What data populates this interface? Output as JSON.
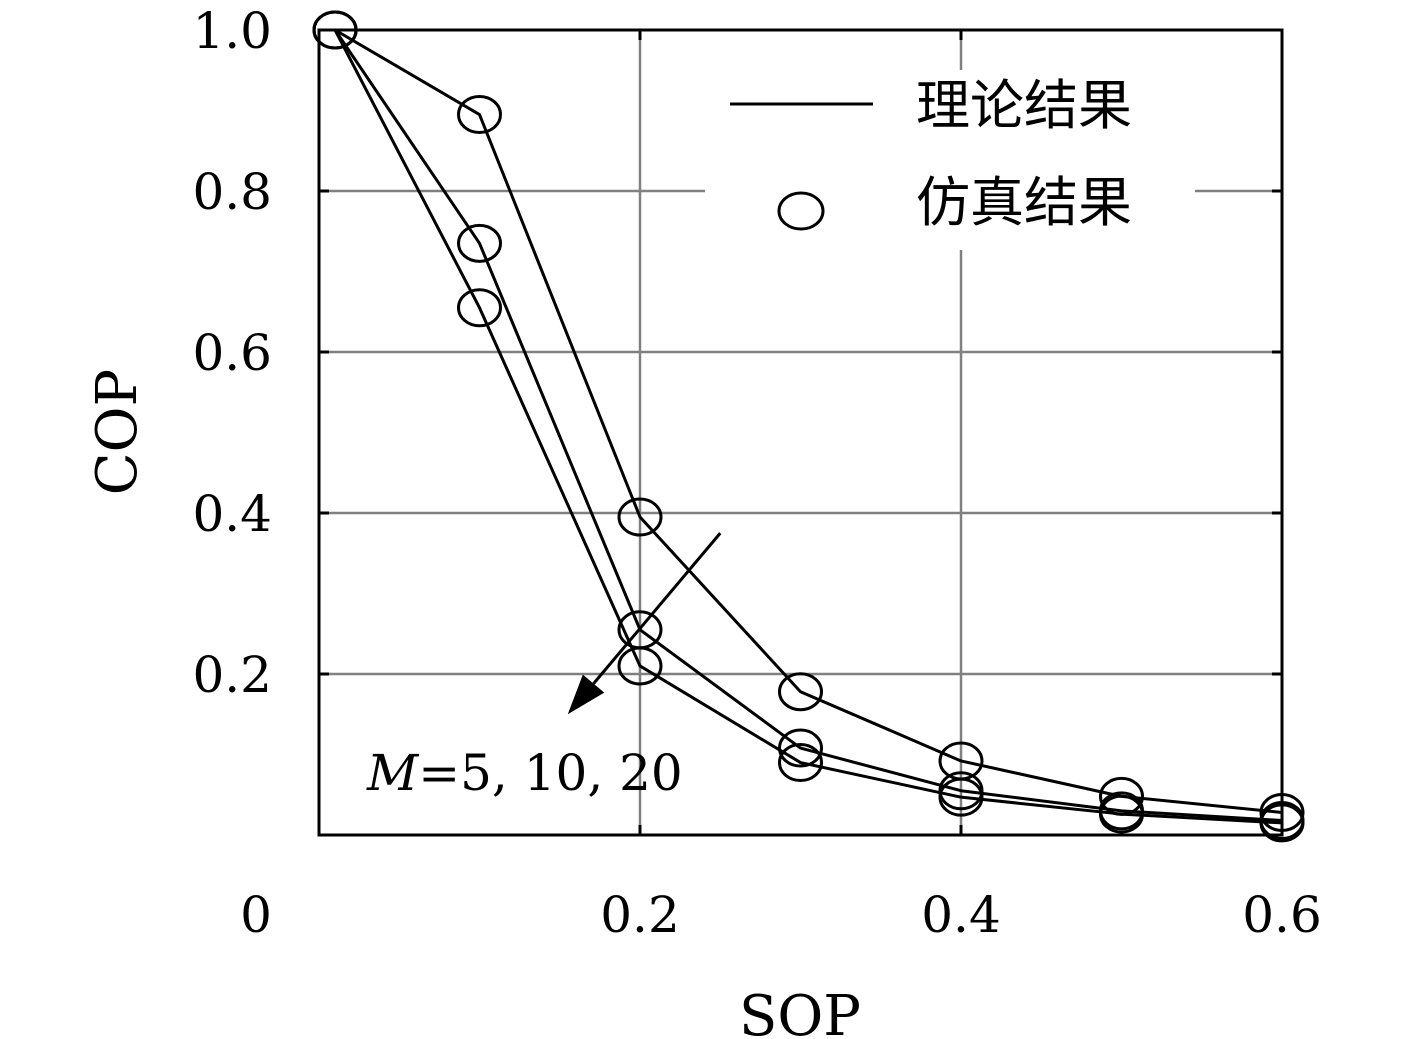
{
  "chart_data": {
    "type": "line",
    "xlabel": "SOP",
    "ylabel": "COP",
    "xlim": [
      0,
      0.6
    ],
    "ylim": [
      0,
      1.0
    ],
    "x_ticks": [
      0,
      0.2,
      0.4,
      0.6
    ],
    "x_tick_labels": [
      "0",
      "0.2",
      "0.4",
      "0.6"
    ],
    "y_ticks": [
      0.2,
      0.4,
      0.6,
      0.8,
      1.0
    ],
    "y_tick_labels": [
      "0.2",
      "0.4",
      "0.6",
      "0.8",
      "1.0"
    ],
    "grid": true,
    "legend": {
      "placement": "top-right",
      "entries": [
        {
          "label": "理论结果",
          "marker": "line"
        },
        {
          "label": "仿真结果",
          "marker": "circle"
        }
      ]
    },
    "annotation": {
      "italic": "M",
      "text": "=5, 10, 20",
      "arrow_from": [
        0.25,
        0.375
      ],
      "arrow_to": [
        0.155,
        0.15
      ]
    },
    "series": [
      {
        "x": [
          0.01,
          0.1,
          0.2,
          0.3,
          0.4,
          0.5,
          0.6
        ],
        "values": [
          1.0,
          0.895,
          0.395,
          0.178,
          0.092,
          0.048,
          0.028
        ]
      },
      {
        "x": [
          0.01,
          0.1,
          0.2,
          0.3,
          0.4,
          0.5,
          0.6
        ],
        "values": [
          1.0,
          0.735,
          0.255,
          0.108,
          0.055,
          0.03,
          0.018
        ]
      },
      {
        "x": [
          0.01,
          0.1,
          0.2,
          0.3,
          0.4,
          0.5,
          0.6
        ],
        "values": [
          1.0,
          0.655,
          0.21,
          0.09,
          0.047,
          0.026,
          0.015
        ]
      }
    ]
  }
}
